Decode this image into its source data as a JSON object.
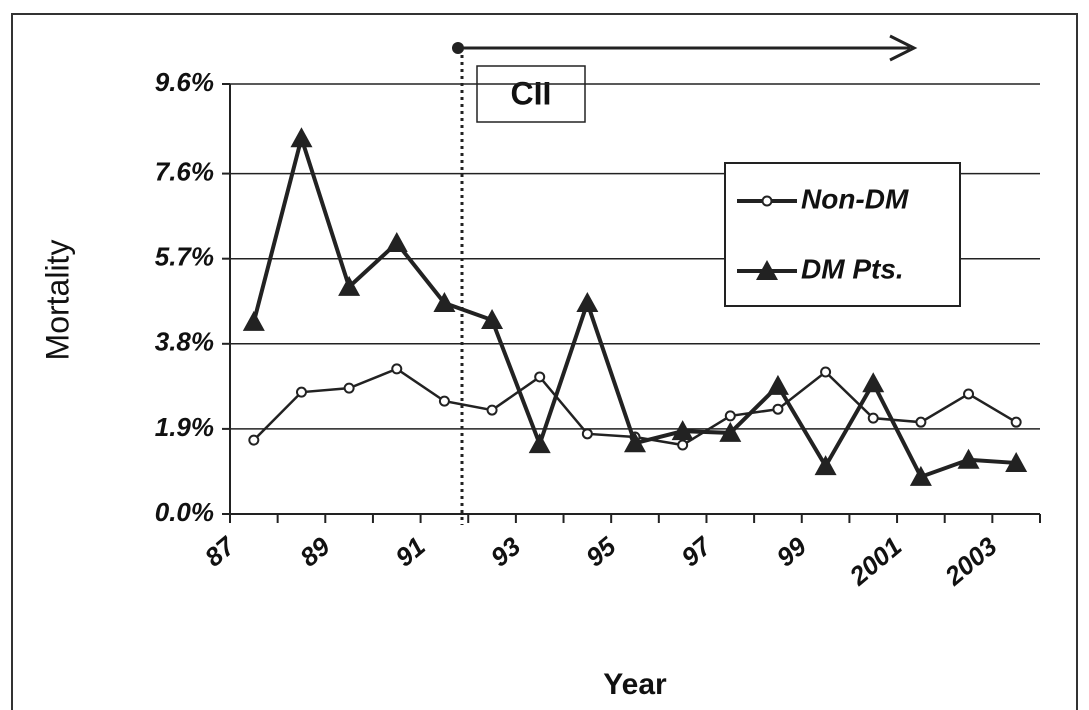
{
  "chart_data": {
    "type": "line",
    "y_label": "Mortality",
    "x_label": "Year",
    "annotation": "CII",
    "categories": [
      "87",
      null,
      "89",
      null,
      "91",
      null,
      "93",
      null,
      "95",
      null,
      "97",
      null,
      "99",
      null,
      "2001",
      null,
      "2003"
    ],
    "ylim": [
      0,
      9.6
    ],
    "yticks": [
      {
        "value": 0,
        "label": "0.0%"
      },
      {
        "value": 1.9,
        "label": "1.9%"
      },
      {
        "value": 3.8,
        "label": "3.8%"
      },
      {
        "value": 5.7,
        "label": "5.7%"
      },
      {
        "value": 7.6,
        "label": "7.6%"
      },
      {
        "value": 9.6,
        "label": "9.6%"
      }
    ],
    "grid": true,
    "legend": "upper right",
    "series": [
      {
        "name": "Non-DM",
        "color": "#222222",
        "marker": "circle",
        "values": [
          1.65,
          2.72,
          2.81,
          3.24,
          2.52,
          2.32,
          3.06,
          1.79,
          1.72,
          1.54,
          2.19,
          2.34,
          3.17,
          2.14,
          2.05,
          2.68,
          2.05
        ]
      },
      {
        "name": "DM Pts.",
        "color": "#222222",
        "marker": "triangle",
        "values": [
          4.29,
          8.39,
          5.07,
          6.05,
          4.71,
          4.33,
          1.56,
          4.71,
          1.58,
          1.85,
          1.81,
          2.86,
          1.07,
          2.92,
          0.83,
          1.21,
          1.14
        ]
      }
    ]
  }
}
